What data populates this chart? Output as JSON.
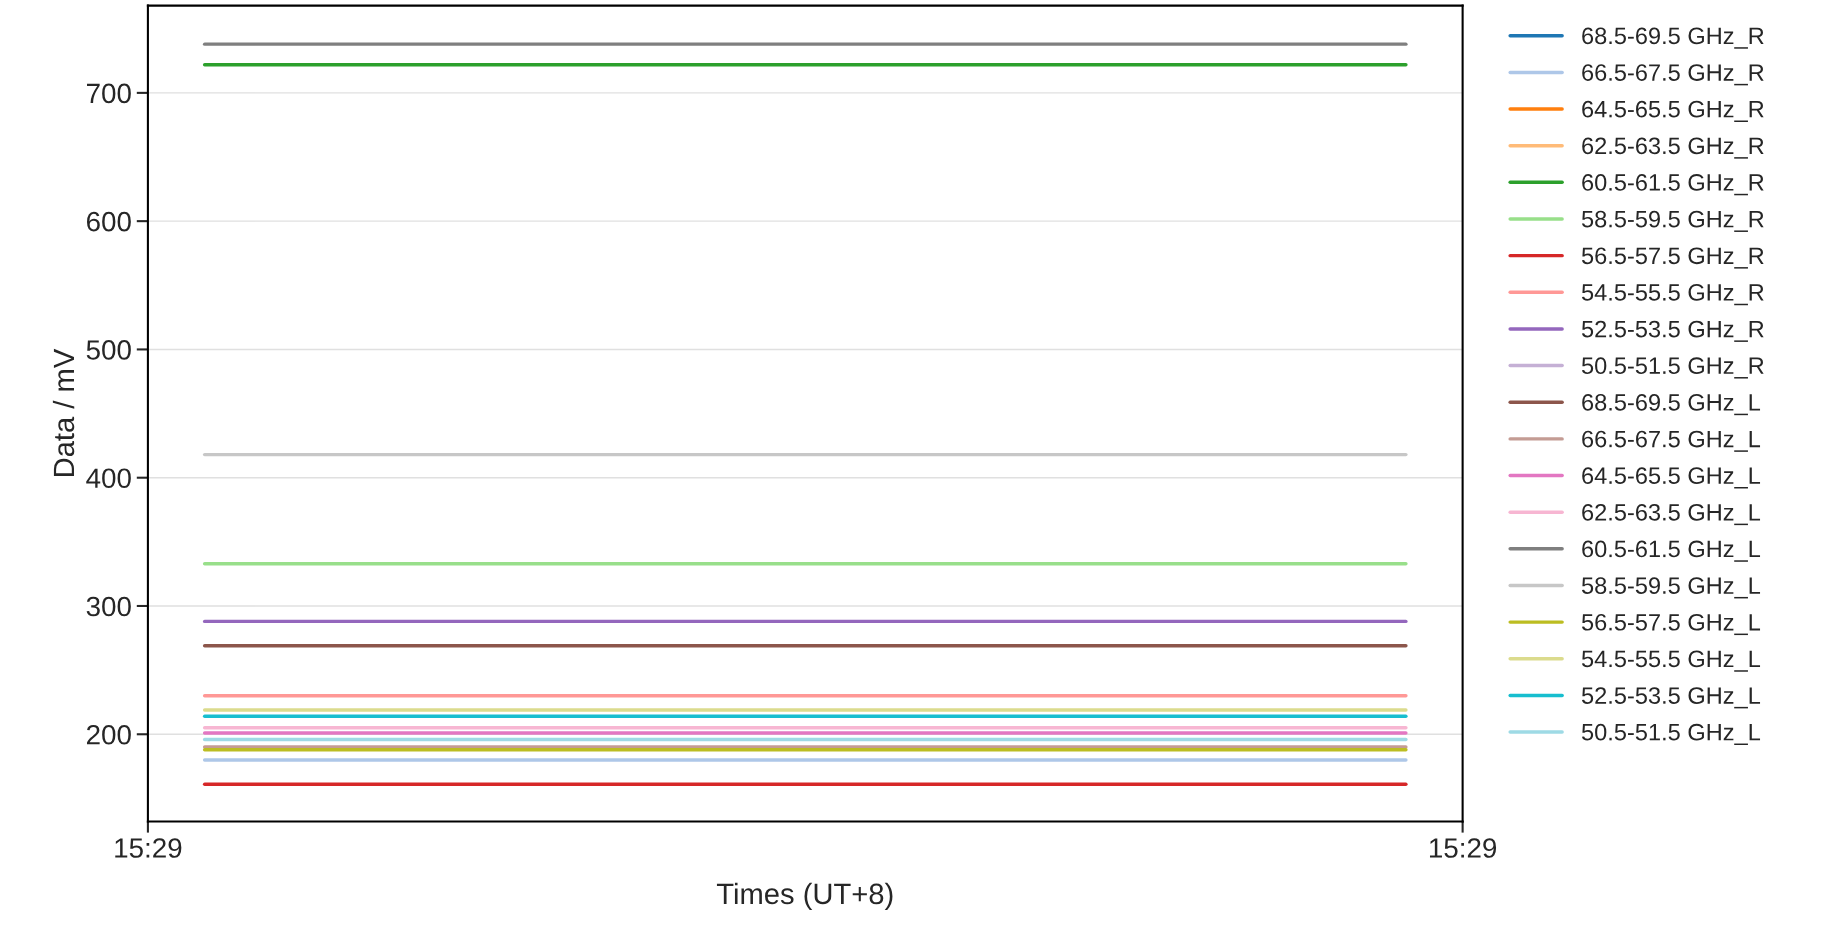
{
  "chart_data": {
    "type": "line",
    "xlabel": "Times (UT+8)",
    "ylabel": "Data / mV",
    "x": [
      15.48339,
      15.48466
    ],
    "xlim": [
      15.48333,
      15.48472
    ],
    "xticks": [
      {
        "value": 15.48333,
        "label": "15:29"
      },
      {
        "value": 15.48472,
        "label": "15:29"
      }
    ],
    "ylim": [
      132,
      768
    ],
    "yticks": [
      200,
      300,
      400,
      500,
      600,
      700
    ],
    "grid": "y",
    "legend": "top right",
    "line_style": "solid",
    "marker": "none",
    "series": [
      {
        "name": "68.5-69.5 GHz_R",
        "color": "#1f77b4",
        "values": [
          null,
          null
        ]
      },
      {
        "name": "66.5-67.5 GHz_R",
        "color": "#aec7e8",
        "values": [
          180,
          180
        ]
      },
      {
        "name": "64.5-65.5 GHz_R",
        "color": "#ff7f0e",
        "values": [
          null,
          null
        ]
      },
      {
        "name": "62.5-63.5 GHz_R",
        "color": "#ffbb78",
        "values": [
          null,
          null
        ]
      },
      {
        "name": "60.5-61.5 GHz_R",
        "color": "#2ca02c",
        "values": [
          722,
          722
        ]
      },
      {
        "name": "58.5-59.5 GHz_R",
        "color": "#98df8a",
        "values": [
          333,
          333
        ]
      },
      {
        "name": "56.5-57.5 GHz_R",
        "color": "#d62728",
        "values": [
          161,
          161
        ]
      },
      {
        "name": "54.5-55.5 GHz_R",
        "color": "#ff9896",
        "values": [
          230,
          230
        ]
      },
      {
        "name": "52.5-53.5 GHz_R",
        "color": "#9467bd",
        "values": [
          288,
          288
        ]
      },
      {
        "name": "50.5-51.5 GHz_R",
        "color": "#c5b0d5",
        "values": [
          null,
          null
        ]
      },
      {
        "name": "68.5-69.5 GHz_L",
        "color": "#8c564b",
        "values": [
          269,
          269
        ]
      },
      {
        "name": "66.5-67.5 GHz_L",
        "color": "#c49c94",
        "values": [
          190,
          190
        ]
      },
      {
        "name": "64.5-65.5 GHz_L",
        "color": "#e377c2",
        "values": [
          201,
          201
        ]
      },
      {
        "name": "62.5-63.5 GHz_L",
        "color": "#f7b6d2",
        "values": [
          205,
          205
        ]
      },
      {
        "name": "60.5-61.5 GHz_L",
        "color": "#7f7f7f",
        "values": [
          738,
          738
        ]
      },
      {
        "name": "58.5-59.5 GHz_L",
        "color": "#c7c7c7",
        "values": [
          418,
          418
        ]
      },
      {
        "name": "56.5-57.5 GHz_L",
        "color": "#bcbd22",
        "values": [
          188,
          188
        ]
      },
      {
        "name": "54.5-55.5 GHz_L",
        "color": "#dbdb8d",
        "values": [
          219,
          219
        ]
      },
      {
        "name": "52.5-53.5 GHz_L",
        "color": "#17becf",
        "values": [
          214,
          214
        ]
      },
      {
        "name": "50.5-51.5 GHz_L",
        "color": "#9edae5",
        "values": [
          196,
          196
        ]
      }
    ]
  }
}
